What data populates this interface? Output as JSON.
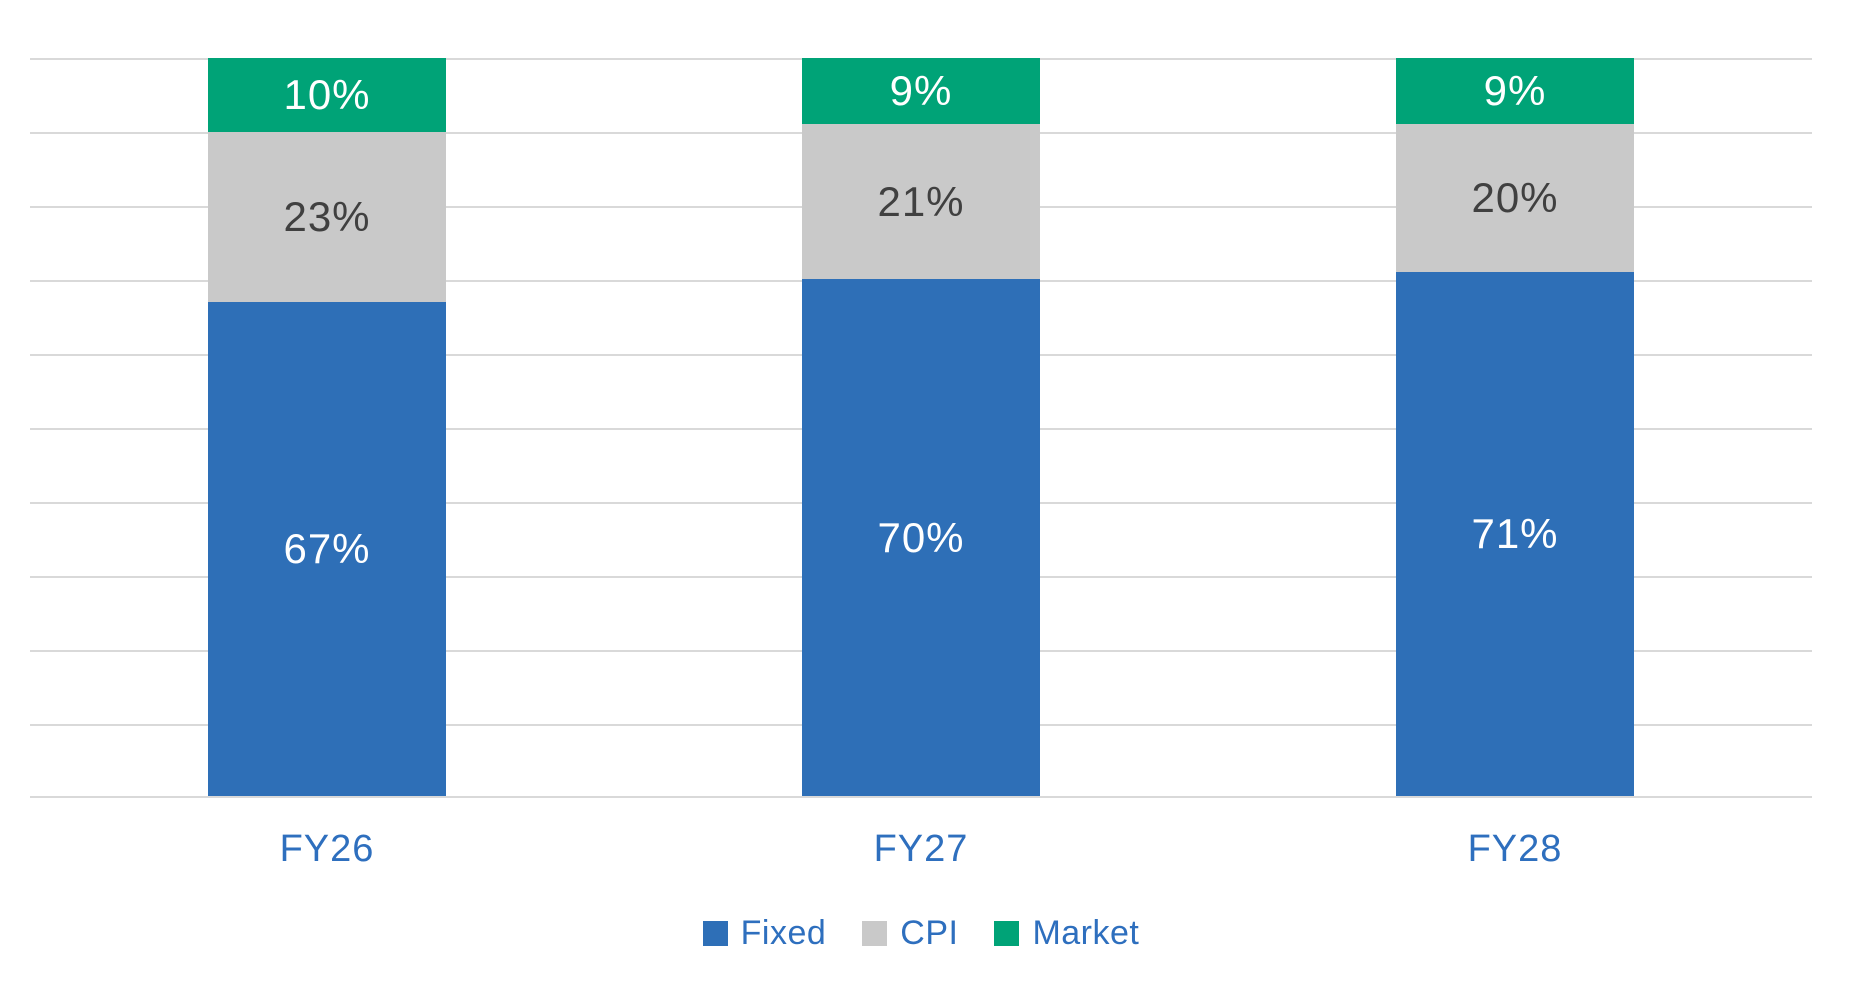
{
  "chart_data": {
    "type": "bar",
    "stacked": true,
    "orientation": "vertical",
    "title": "",
    "categories": [
      "FY26",
      "FY27",
      "FY28"
    ],
    "series": [
      {
        "name": "Fixed",
        "color": "#2E6FB7",
        "label_color": "#FFFFFF",
        "values": [
          67,
          70,
          71
        ]
      },
      {
        "name": "CPI",
        "color": "#C9C9C9",
        "label_color": "#404040",
        "values": [
          23,
          21,
          20
        ]
      },
      {
        "name": "Market",
        "color": "#00A377",
        "label_color": "#FFFFFF",
        "values": [
          10,
          9,
          9
        ]
      }
    ],
    "data_labels": {
      "FY26": {
        "Fixed": "67%",
        "CPI": "23%",
        "Market": "10%"
      },
      "FY27": {
        "Fixed": "70%",
        "CPI": "21%",
        "Market": "9%"
      },
      "FY28": {
        "Fixed": "71%",
        "CPI": "20%",
        "Market": "9%"
      }
    },
    "value_suffix": "%",
    "ylim": [
      0,
      100
    ],
    "gridline_interval": 10,
    "grid": true,
    "y_axis_labels_visible": false,
    "legend_position": "bottom",
    "legend_items": [
      "Fixed",
      "CPI",
      "Market"
    ],
    "colors": {
      "axis_label_text": "#2E6FBE",
      "legend_text": "#2E6FBE",
      "gridline": "#D9D9D9",
      "background": "#FFFFFF"
    }
  }
}
